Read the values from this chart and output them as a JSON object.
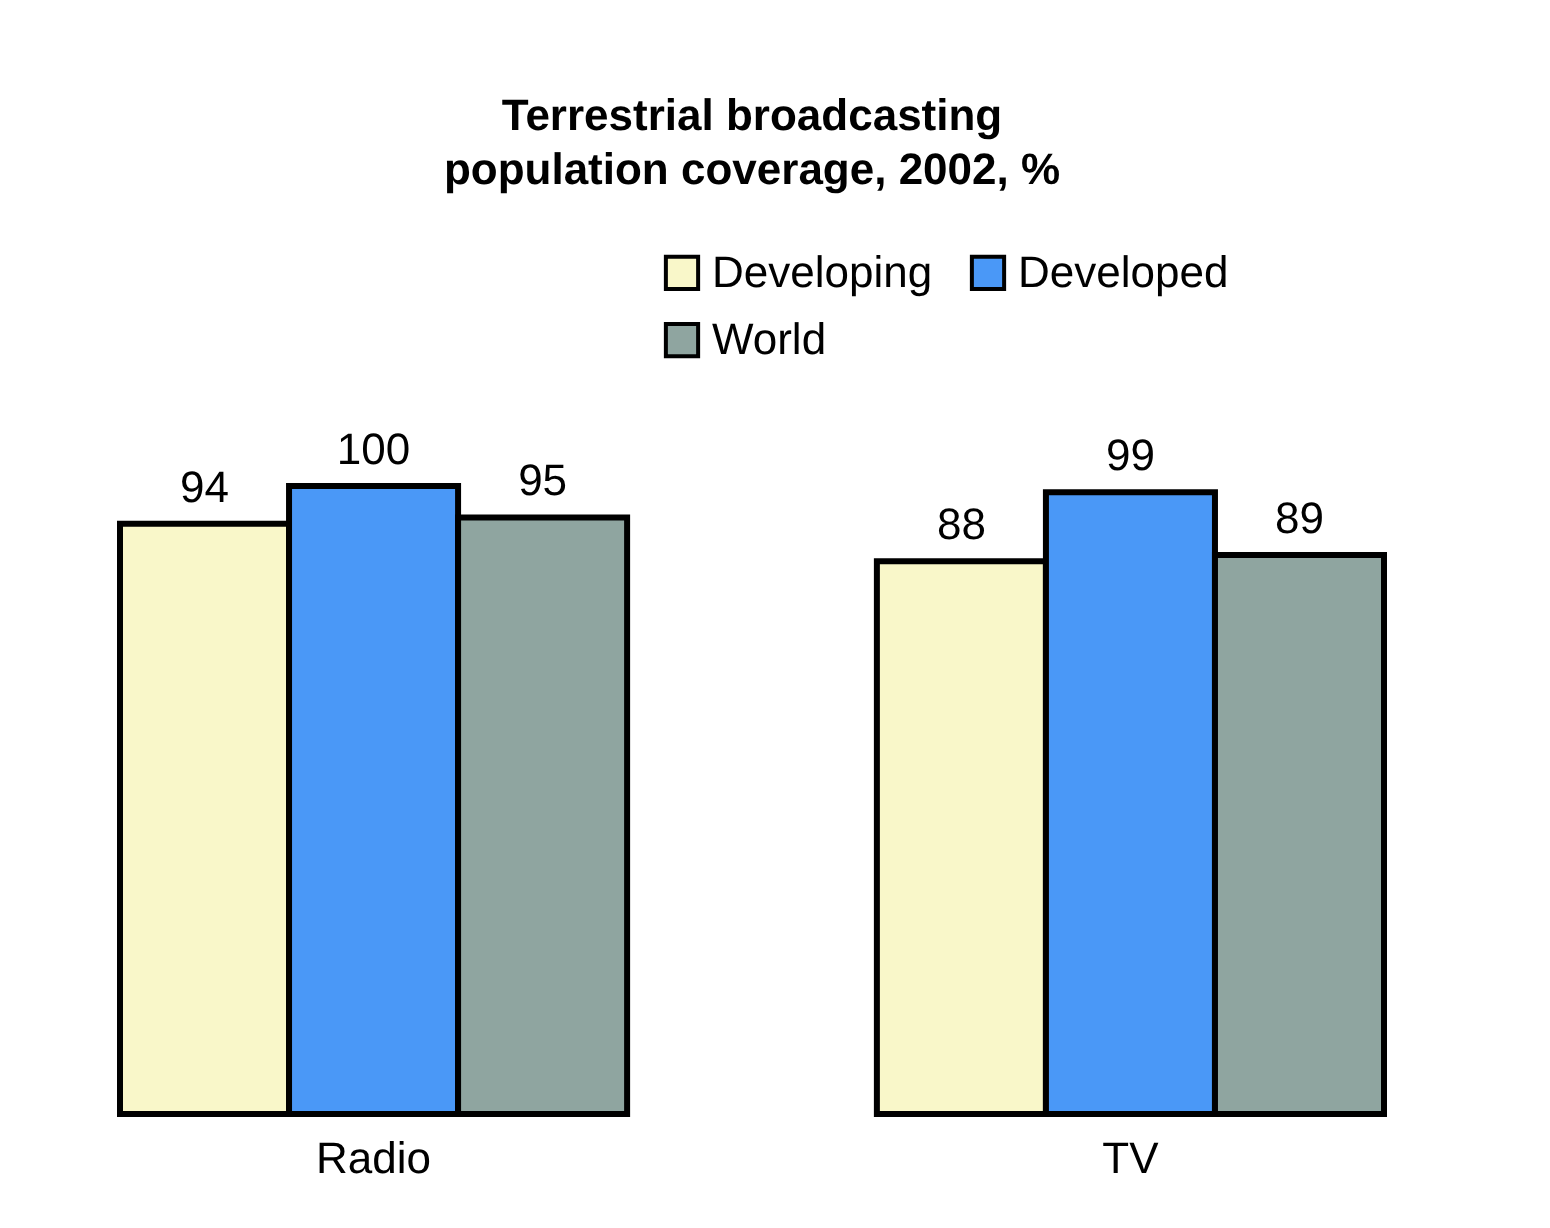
{
  "chart_data": {
    "type": "bar",
    "title": "Terrestrial broadcasting\npopulation coverage, 2002, %",
    "categories": [
      "Radio",
      "TV"
    ],
    "series": [
      {
        "name": "Developing",
        "color": "#f9f7c9",
        "values": [
          94,
          88
        ]
      },
      {
        "name": "Developed",
        "color": "#4a98f7",
        "values": [
          100,
          99
        ]
      },
      {
        "name": "World",
        "color": "#8fa5a0",
        "values": [
          95,
          89
        ]
      }
    ],
    "data_labels": true,
    "legend": "top right",
    "grid": false
  }
}
